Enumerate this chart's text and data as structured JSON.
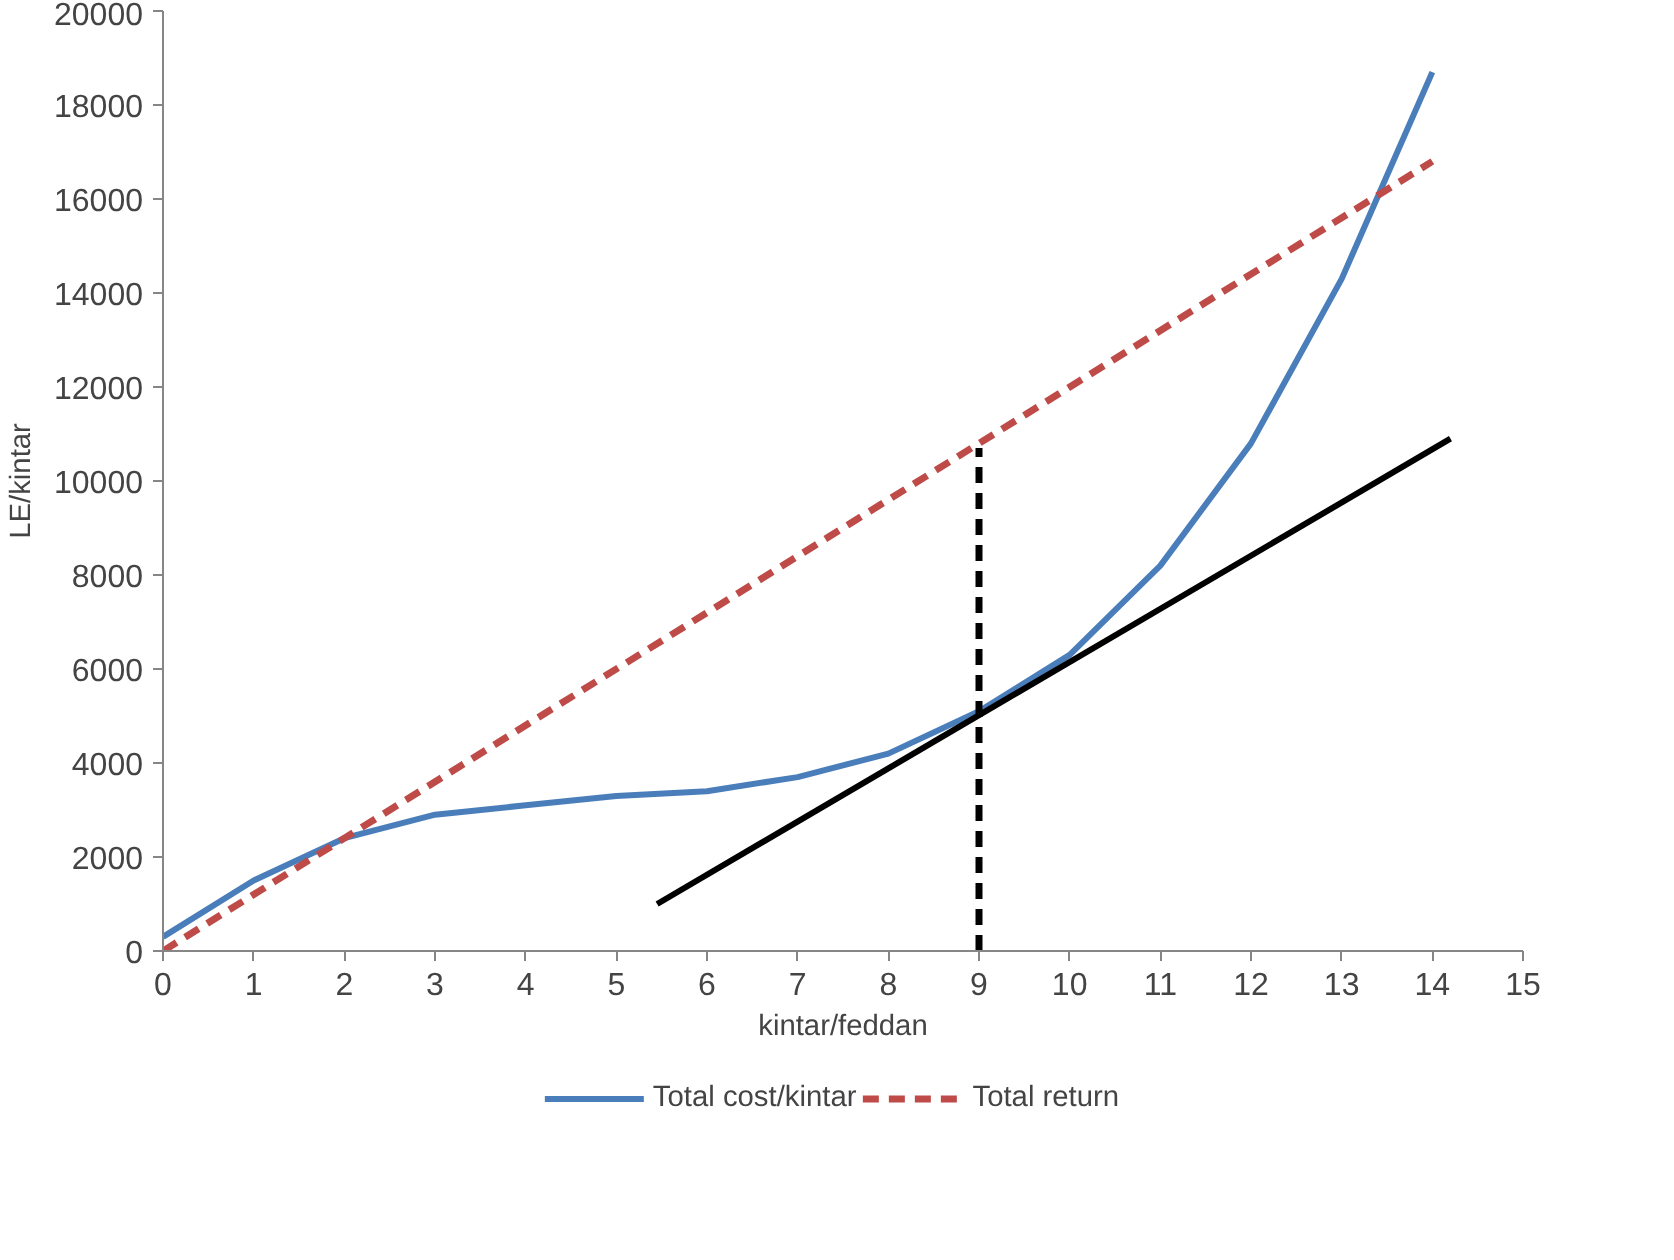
{
  "chart_data": {
    "type": "line",
    "xlabel": "kintar/feddan",
    "ylabel": "LE/kintar",
    "xlim": [
      0,
      15
    ],
    "ylim": [
      0,
      20000
    ],
    "xticks": [
      0,
      1,
      2,
      3,
      4,
      5,
      6,
      7,
      8,
      9,
      10,
      11,
      12,
      13,
      14,
      15
    ],
    "yticks": [
      0,
      2000,
      4000,
      6000,
      8000,
      10000,
      12000,
      14000,
      16000,
      18000,
      20000
    ],
    "grid": false,
    "legend": "bottom",
    "marker": "none",
    "series": [
      {
        "name": "Total cost/kintar",
        "color": "#4a7ebb",
        "line_style": "solid",
        "x": [
          0,
          1,
          2,
          3,
          4,
          5,
          6,
          7,
          8,
          9,
          10,
          11,
          12,
          13,
          14
        ],
        "values": [
          300,
          1500,
          2400,
          2900,
          3100,
          3300,
          3400,
          3700,
          4200,
          5100,
          6300,
          8200,
          10800,
          14300,
          18700
        ]
      },
      {
        "name": "Total return",
        "color": "#be4b48",
        "line_style": "dashed",
        "x": [
          0,
          14
        ],
        "values": [
          0,
          16800
        ]
      },
      {
        "color": "#000000",
        "line_style": "solid",
        "x": [
          5.45,
          14.2
        ],
        "values": [
          1000,
          10900
        ]
      },
      {
        "color": "#000000",
        "line_style": "dashed",
        "x": [
          9,
          9
        ],
        "values": [
          0,
          10700
        ]
      }
    ]
  }
}
